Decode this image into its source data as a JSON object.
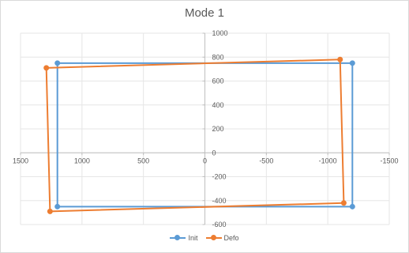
{
  "chart_data": {
    "type": "scatter",
    "title": "Mode 1",
    "xlabel": "",
    "ylabel": "",
    "xlim": [
      1500,
      -1500
    ],
    "ylim": [
      -600,
      1000
    ],
    "x_reversed": true,
    "xticks": [
      "1500",
      "1000",
      "500",
      "0",
      "-500",
      "-1000",
      "-1500"
    ],
    "yticks": [
      "1000",
      "800",
      "600",
      "400",
      "200",
      "0",
      "-200",
      "-400",
      "-600"
    ],
    "grid": "vertical and horizontal gridlines",
    "legend_position": "bottom",
    "series": [
      {
        "name": "Init",
        "color": "#5b9bd5",
        "x": [
          1200,
          -1200,
          -1200,
          1200,
          1200
        ],
        "y": [
          750,
          750,
          -450,
          -450,
          750
        ]
      },
      {
        "name": "Defo",
        "color": "#ed7d31",
        "x": [
          1290,
          -1100,
          -1130,
          1260,
          1290
        ],
        "y": [
          710,
          780,
          -420,
          -490,
          710
        ]
      }
    ]
  }
}
